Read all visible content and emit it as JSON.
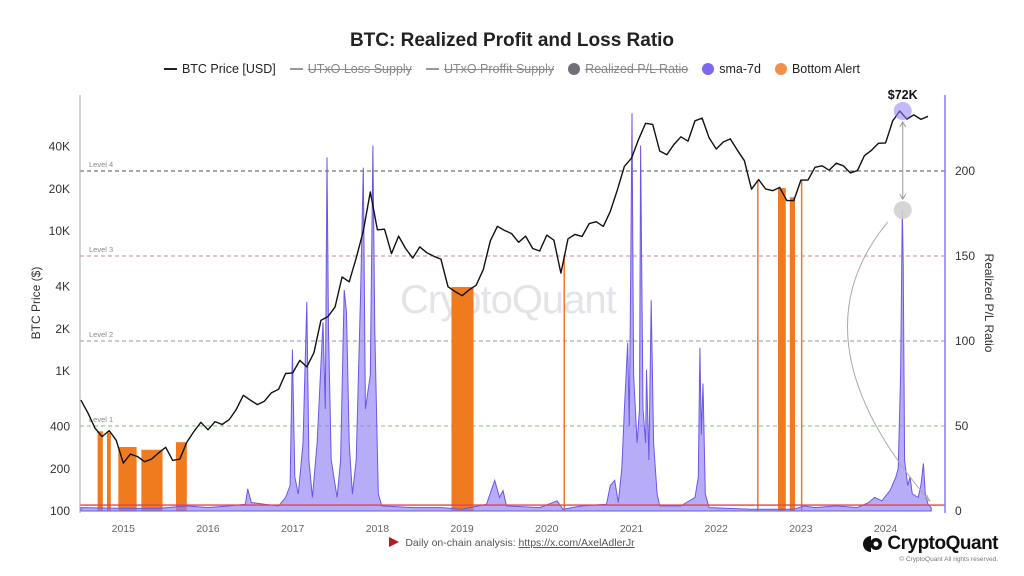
{
  "chart_data": {
    "type": "line",
    "title": "BTC: Realized Profit and Loss Ratio",
    "legend": {
      "placement": "top",
      "items": [
        {
          "label": "BTC Price [USD]",
          "marker": "line",
          "color": "#111111",
          "visible": true
        },
        {
          "label": "UTxO Loss Supply",
          "marker": "line",
          "color": "#999999",
          "visible": false
        },
        {
          "label": "UTxO Proffit Supply",
          "marker": "line",
          "color": "#999999",
          "visible": false
        },
        {
          "label": "Realized P/L Ratio",
          "marker": "dot",
          "color": "#707078",
          "visible": false
        },
        {
          "label": "sma-7d",
          "marker": "dot",
          "color": "#7b68ee",
          "visible": true
        },
        {
          "label": "Bottom Alert",
          "marker": "dot",
          "color": "#f0904a",
          "visible": true
        }
      ]
    },
    "y_left": {
      "label": "BTC Price ($)",
      "scale": "log",
      "range": [
        100,
        100000
      ],
      "ticks": [
        100,
        200,
        400,
        1000,
        2000,
        4000,
        10000,
        20000,
        40000
      ],
      "tick_labels": [
        "100",
        "200",
        "400",
        "1K",
        "2K",
        "4K",
        "10K",
        "20K",
        "40K"
      ]
    },
    "y_right": {
      "label": "Realized P/L Ratio",
      "scale": "linear",
      "range": [
        0,
        245
      ],
      "ticks": [
        0,
        50,
        100,
        150,
        200
      ],
      "tick_labels": [
        "0",
        "50",
        "100",
        "150",
        "200"
      ]
    },
    "x": {
      "range": [
        "2014-07-01",
        "2024-08-01"
      ],
      "ticks": [
        "2015",
        "2016",
        "2017",
        "2018",
        "2019",
        "2020",
        "2021",
        "2022",
        "2023",
        "2024"
      ]
    },
    "grid": false,
    "levels": [
      {
        "label": "Level 4",
        "value": 200,
        "color": "#555555"
      },
      {
        "label": "Level 3",
        "value": 150,
        "color": "#c98a9a"
      },
      {
        "label": "Level 2",
        "value": 100,
        "color": "#9a8fb0"
      },
      {
        "label": "Level 1",
        "value": 50,
        "color": "#7cc27c"
      }
    ],
    "threshold_line": {
      "value": 3.5,
      "color": "#e0474c"
    },
    "series": [
      {
        "name": "BTC Price [USD]",
        "axis": "left",
        "color": "#111111",
        "points": [
          [
            "2014-07",
            620
          ],
          [
            "2014-08",
            500
          ],
          [
            "2014-09",
            390
          ],
          [
            "2014-10",
            340
          ],
          [
            "2014-11",
            375
          ],
          [
            "2014-12",
            320
          ],
          [
            "2015-01",
            220
          ],
          [
            "2015-02",
            255
          ],
          [
            "2015-03",
            245
          ],
          [
            "2015-04",
            225
          ],
          [
            "2015-05",
            235
          ],
          [
            "2015-06",
            260
          ],
          [
            "2015-07",
            285
          ],
          [
            "2015-08",
            230
          ],
          [
            "2015-09",
            235
          ],
          [
            "2015-10",
            310
          ],
          [
            "2015-11",
            370
          ],
          [
            "2015-12",
            430
          ],
          [
            "2016-01",
            380
          ],
          [
            "2016-02",
            435
          ],
          [
            "2016-03",
            415
          ],
          [
            "2016-04",
            450
          ],
          [
            "2016-05",
            530
          ],
          [
            "2016-06",
            670
          ],
          [
            "2016-07",
            620
          ],
          [
            "2016-08",
            575
          ],
          [
            "2016-09",
            610
          ],
          [
            "2016-10",
            700
          ],
          [
            "2016-11",
            740
          ],
          [
            "2016-12",
            960
          ],
          [
            "2017-01",
            970
          ],
          [
            "2017-02",
            1190
          ],
          [
            "2017-03",
            1070
          ],
          [
            "2017-04",
            1350
          ],
          [
            "2017-05",
            2300
          ],
          [
            "2017-06",
            2450
          ],
          [
            "2017-07",
            2870
          ],
          [
            "2017-08",
            4700
          ],
          [
            "2017-09",
            4340
          ],
          [
            "2017-10",
            6400
          ],
          [
            "2017-11",
            10000
          ],
          [
            "2017-12",
            19000
          ],
          [
            "2018-01",
            10200
          ],
          [
            "2018-02",
            10300
          ],
          [
            "2018-03",
            6900
          ],
          [
            "2018-04",
            9200
          ],
          [
            "2018-05",
            7500
          ],
          [
            "2018-06",
            6400
          ],
          [
            "2018-07",
            7700
          ],
          [
            "2018-08",
            7000
          ],
          [
            "2018-09",
            6600
          ],
          [
            "2018-10",
            6300
          ],
          [
            "2018-11",
            4000
          ],
          [
            "2018-12",
            3700
          ],
          [
            "2019-01",
            3450
          ],
          [
            "2019-02",
            3800
          ],
          [
            "2019-03",
            4100
          ],
          [
            "2019-04",
            5300
          ],
          [
            "2019-05",
            8500
          ],
          [
            "2019-06",
            10800
          ],
          [
            "2019-07",
            10100
          ],
          [
            "2019-08",
            9600
          ],
          [
            "2019-09",
            8300
          ],
          [
            "2019-10",
            9200
          ],
          [
            "2019-11",
            7500
          ],
          [
            "2019-12",
            7200
          ],
          [
            "2020-01",
            9350
          ],
          [
            "2020-02",
            8600
          ],
          [
            "2020-03",
            5000
          ],
          [
            "2020-04",
            8800
          ],
          [
            "2020-05",
            9450
          ],
          [
            "2020-06",
            9150
          ],
          [
            "2020-07",
            11300
          ],
          [
            "2020-08",
            11650
          ],
          [
            "2020-09",
            10780
          ],
          [
            "2020-10",
            13800
          ],
          [
            "2020-11",
            19700
          ],
          [
            "2020-12",
            29000
          ],
          [
            "2021-01",
            33100
          ],
          [
            "2021-02",
            45200
          ],
          [
            "2021-03",
            58800
          ],
          [
            "2021-04",
            57700
          ],
          [
            "2021-05",
            37300
          ],
          [
            "2021-06",
            35000
          ],
          [
            "2021-07",
            41500
          ],
          [
            "2021-08",
            47100
          ],
          [
            "2021-09",
            43800
          ],
          [
            "2021-10",
            61300
          ],
          [
            "2021-11",
            64000
          ],
          [
            "2021-12",
            46300
          ],
          [
            "2022-01",
            38500
          ],
          [
            "2022-02",
            43200
          ],
          [
            "2022-03",
            45500
          ],
          [
            "2022-04",
            37700
          ],
          [
            "2022-05",
            31800
          ],
          [
            "2022-06",
            19900
          ],
          [
            "2022-07",
            23300
          ],
          [
            "2022-08",
            20000
          ],
          [
            "2022-09",
            19400
          ],
          [
            "2022-10",
            20500
          ],
          [
            "2022-11",
            16500
          ],
          [
            "2022-12",
            16500
          ],
          [
            "2023-01",
            23100
          ],
          [
            "2023-02",
            23100
          ],
          [
            "2023-03",
            28500
          ],
          [
            "2023-04",
            29200
          ],
          [
            "2023-05",
            27200
          ],
          [
            "2023-06",
            30500
          ],
          [
            "2023-07",
            29200
          ],
          [
            "2023-08",
            26000
          ],
          [
            "2023-09",
            27000
          ],
          [
            "2023-10",
            34500
          ],
          [
            "2023-11",
            37700
          ],
          [
            "2023-12",
            42300
          ],
          [
            "2024-01",
            42600
          ],
          [
            "2024-02",
            61200
          ],
          [
            "2024-03",
            72000
          ],
          [
            "2024-04",
            63000
          ],
          [
            "2024-05",
            67500
          ],
          [
            "2024-06",
            62700
          ],
          [
            "2024-07",
            66000
          ]
        ]
      },
      {
        "name": "sma-7d",
        "axis": "right",
        "color": "#7b68ee",
        "points": [
          [
            "2014-07-01",
            2
          ],
          [
            "2015-01-01",
            1.5
          ],
          [
            "2015-06-01",
            1.5
          ],
          [
            "2015-10-01",
            3
          ],
          [
            "2016-01-01",
            2
          ],
          [
            "2016-04-01",
            3
          ],
          [
            "2016-06-10",
            4
          ],
          [
            "2016-06-20",
            13
          ],
          [
            "2016-07-05",
            5
          ],
          [
            "2016-09-01",
            4
          ],
          [
            "2016-11-01",
            3
          ],
          [
            "2016-12-01",
            8
          ],
          [
            "2016-12-20",
            15
          ],
          [
            "2016-12-30",
            95
          ],
          [
            "2017-01-10",
            20
          ],
          [
            "2017-01-25",
            10
          ],
          [
            "2017-02-15",
            40
          ],
          [
            "2017-03-01",
            123
          ],
          [
            "2017-03-10",
            30
          ],
          [
            "2017-03-25",
            8
          ],
          [
            "2017-04-15",
            40
          ],
          [
            "2017-05-10",
            111
          ],
          [
            "2017-05-20",
            60
          ],
          [
            "2017-05-27",
            208
          ],
          [
            "2017-06-03",
            106
          ],
          [
            "2017-06-15",
            30
          ],
          [
            "2017-07-10",
            8
          ],
          [
            "2017-07-25",
            30
          ],
          [
            "2017-08-10",
            130
          ],
          [
            "2017-08-20",
            117
          ],
          [
            "2017-09-01",
            40
          ],
          [
            "2017-09-15",
            10
          ],
          [
            "2017-10-01",
            30
          ],
          [
            "2017-10-20",
            128
          ],
          [
            "2017-11-01",
            202
          ],
          [
            "2017-11-10",
            60
          ],
          [
            "2017-12-01",
            80
          ],
          [
            "2017-12-12",
            215
          ],
          [
            "2017-12-20",
            106
          ],
          [
            "2018-01-05",
            10
          ],
          [
            "2018-01-20",
            3
          ],
          [
            "2018-06-01",
            2
          ],
          [
            "2018-10-01",
            2
          ],
          [
            "2019-01-01",
            1
          ],
          [
            "2019-04-15",
            4
          ],
          [
            "2019-05-20",
            18
          ],
          [
            "2019-06-10",
            8
          ],
          [
            "2019-06-25",
            12
          ],
          [
            "2019-07-10",
            3
          ],
          [
            "2019-12-01",
            2
          ],
          [
            "2020-02-15",
            6
          ],
          [
            "2020-03-10",
            1
          ],
          [
            "2020-06-01",
            3
          ],
          [
            "2020-09-15",
            4
          ],
          [
            "2020-10-01",
            15
          ],
          [
            "2020-10-20",
            18
          ],
          [
            "2020-11-05",
            5
          ],
          [
            "2020-11-20",
            25
          ],
          [
            "2020-12-01",
            60
          ],
          [
            "2020-12-15",
            99
          ],
          [
            "2020-12-22",
            50
          ],
          [
            "2020-12-28",
            140
          ],
          [
            "2021-01-03",
            234
          ],
          [
            "2021-01-10",
            80
          ],
          [
            "2021-01-25",
            40
          ],
          [
            "2021-02-05",
            60
          ],
          [
            "2021-02-10",
            215
          ],
          [
            "2021-02-20",
            60
          ],
          [
            "2021-03-01",
            40
          ],
          [
            "2021-03-05",
            83
          ],
          [
            "2021-03-15",
            30
          ],
          [
            "2021-03-25",
            124
          ],
          [
            "2021-04-05",
            40
          ],
          [
            "2021-04-20",
            10
          ],
          [
            "2021-05-01",
            3
          ],
          [
            "2021-08-01",
            3
          ],
          [
            "2021-10-01",
            8
          ],
          [
            "2021-10-15",
            20
          ],
          [
            "2021-10-22",
            96
          ],
          [
            "2021-10-28",
            45
          ],
          [
            "2021-11-05",
            75
          ],
          [
            "2021-11-15",
            10
          ],
          [
            "2021-12-01",
            2
          ],
          [
            "2022-06-01",
            1
          ],
          [
            "2022-12-01",
            1
          ],
          [
            "2023-01-15",
            3
          ],
          [
            "2023-03-01",
            2
          ],
          [
            "2023-06-01",
            3
          ],
          [
            "2023-09-01",
            2
          ],
          [
            "2023-10-20",
            5
          ],
          [
            "2023-11-15",
            8
          ],
          [
            "2023-12-15",
            6
          ],
          [
            "2024-01-20",
            12
          ],
          [
            "2024-02-15",
            20
          ],
          [
            "2024-02-25",
            25
          ],
          [
            "2024-03-05",
            80
          ],
          [
            "2024-03-12",
            177
          ],
          [
            "2024-03-16",
            146
          ],
          [
            "2024-03-22",
            30
          ],
          [
            "2024-04-05",
            15
          ],
          [
            "2024-04-15",
            20
          ],
          [
            "2024-04-25",
            10
          ],
          [
            "2024-05-20",
            8
          ],
          [
            "2024-06-01",
            15
          ],
          [
            "2024-06-12",
            28
          ],
          [
            "2024-06-20",
            10
          ],
          [
            "2024-07-01",
            4
          ],
          [
            "2024-07-15",
            2
          ]
        ]
      },
      {
        "name": "Bottom Alert",
        "color": "#f07a1e",
        "ranges": [
          [
            "2014-09-12",
            "2014-10-04"
          ],
          [
            "2014-10-22",
            "2014-11-08"
          ],
          [
            "2014-12-10",
            "2015-02-28"
          ],
          [
            "2015-03-18",
            "2015-06-18"
          ],
          [
            "2015-08-15",
            "2015-10-01"
          ],
          [
            "2018-11-16",
            "2019-02-20"
          ],
          [
            "2020-03-12",
            "2020-03-16"
          ],
          [
            "2022-06-25",
            "2022-06-28"
          ],
          [
            "2022-09-24",
            "2022-10-27"
          ],
          [
            "2022-11-14",
            "2022-12-06"
          ],
          [
            "2023-01-01",
            "2023-01-04"
          ]
        ]
      }
    ],
    "annotations": [
      {
        "text": "$72K",
        "date": "2024-03-14",
        "price": 72000,
        "ratio": 177
      }
    ]
  },
  "footer": {
    "prefix": "Daily on-chain analysis: ",
    "link": "https://x.com/AxelAdlerJr",
    "brand": "CryptoQuant",
    "copyright": "© CryptoQuant All rights reserved.",
    "watermark": "CryptoQuant"
  }
}
